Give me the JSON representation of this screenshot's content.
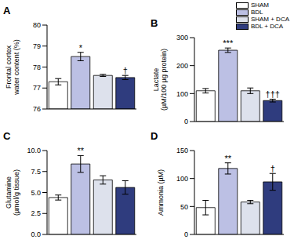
{
  "chart_data": [
    {
      "type": "bar",
      "title": "A",
      "y_label": "Frontal cortex\nwater content (%)",
      "categories": [
        "SHAM",
        "BDL",
        "SHAM + DCA",
        "BDL + DCA"
      ],
      "values": [
        77.3,
        78.5,
        77.6,
        77.5
      ],
      "errors": [
        0.15,
        0.2,
        0.05,
        0.1
      ],
      "significance": [
        null,
        "*",
        null,
        "†"
      ],
      "colors": [
        "#ffffff",
        "#bcc0e4",
        "#dde1ec",
        "#2f3c7e"
      ],
      "ylim": [
        76,
        80
      ],
      "yticks": [
        76,
        77,
        78,
        79,
        80
      ],
      "tick_labels": "y",
      "legend": "top right"
    },
    {
      "type": "bar",
      "title": "B",
      "y_label": "Lactate\n(µM/100 µg protein)",
      "categories": [
        "SHAM",
        "BDL",
        "SHAM + DCA",
        "BDL + DCA"
      ],
      "values": [
        110,
        255,
        110,
        75
      ],
      "errors": [
        8,
        8,
        10,
        5
      ],
      "significance": [
        null,
        "***",
        null,
        "†††"
      ],
      "colors": [
        "#ffffff",
        "#bcc0e4",
        "#dde1ec",
        "#2f3c7e"
      ],
      "ylim": [
        0,
        300
      ],
      "yticks": [
        0,
        100,
        200,
        300
      ],
      "tick_labels": "y"
    },
    {
      "type": "bar",
      "title": "C",
      "y_label": "Glutamine\n(µmol/g tissue)",
      "categories": [
        "SHAM",
        "BDL",
        "SHAM + DCA",
        "BDL + DCA"
      ],
      "values": [
        4.4,
        8.4,
        6.5,
        5.6
      ],
      "errors": [
        0.3,
        1.0,
        0.5,
        0.8
      ],
      "significance": [
        null,
        "**",
        null,
        null
      ],
      "colors": [
        "#ffffff",
        "#bcc0e4",
        "#dde1ec",
        "#2f3c7e"
      ],
      "ylim": [
        0,
        10
      ],
      "yticks": [
        {
          "value": 0,
          "label": "0.0"
        },
        2.5,
        {
          "value": 5,
          "label": "5.0"
        },
        7.5,
        {
          "value": 10,
          "label": "10.0"
        }
      ],
      "tick_labels": "y"
    },
    {
      "type": "bar",
      "title": "D",
      "y_label": "Ammonia (µM)",
      "categories": [
        "SHAM",
        "BDL",
        "SHAM + DCA",
        "BDL + DCA"
      ],
      "values": [
        48,
        118,
        58,
        94
      ],
      "errors": [
        13,
        10,
        3,
        15
      ],
      "significance": [
        null,
        "**",
        null,
        "†"
      ],
      "colors": [
        "#ffffff",
        "#bcc0e4",
        "#dde1ec",
        "#2f3c7e"
      ],
      "ylim": [
        0,
        150
      ],
      "yticks": [
        0,
        50,
        100,
        150
      ],
      "tick_labels": "y"
    }
  ]
}
